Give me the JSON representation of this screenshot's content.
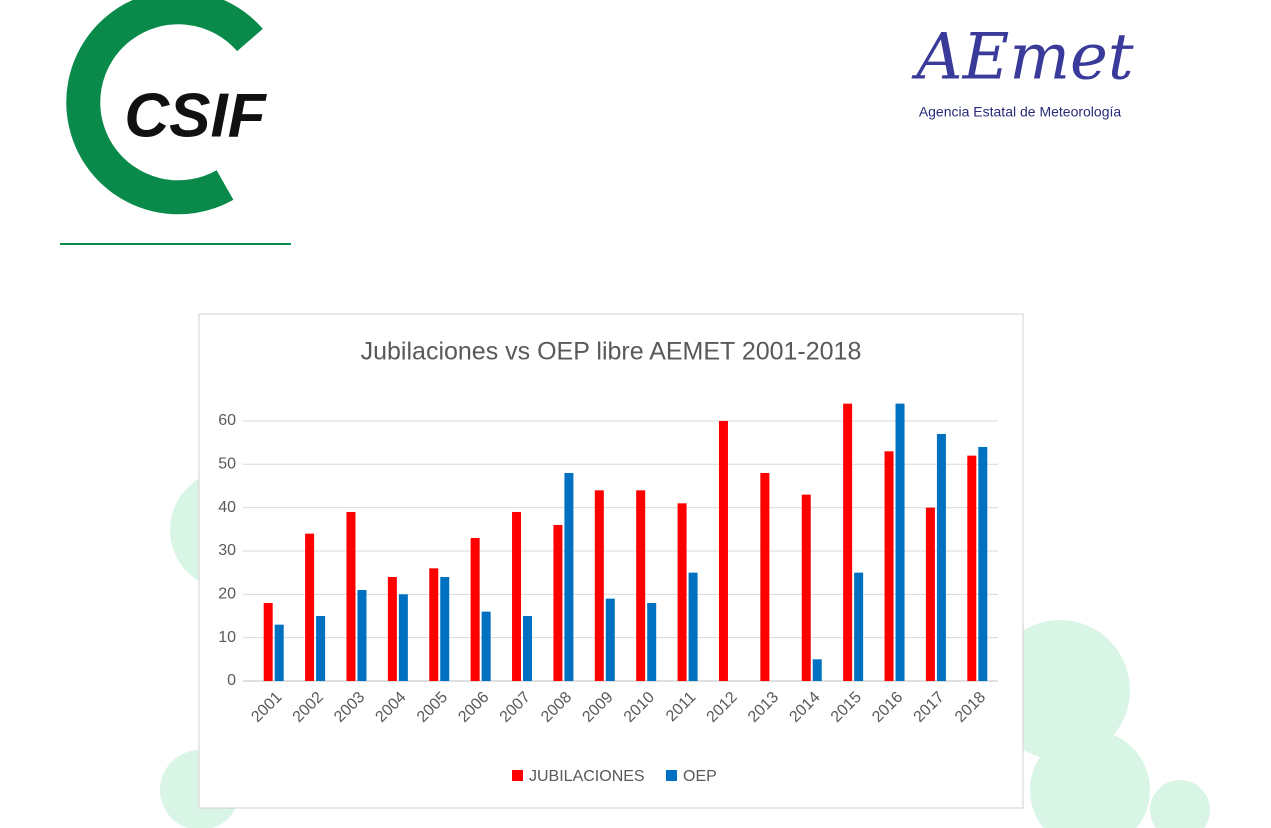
{
  "logos": {
    "left": "CSIF",
    "right": "AEmet",
    "right_caption": "Agencia Estatal de Meteorología"
  },
  "chart_data": {
    "type": "bar",
    "title": "Jubilaciones vs OEP libre AEMET 2001-2018",
    "categories": [
      "2001",
      "2002",
      "2003",
      "2004",
      "2005",
      "2006",
      "2007",
      "2008",
      "2009",
      "2010",
      "2011",
      "2012",
      "2013",
      "2014",
      "2015",
      "2016",
      "2017",
      "2018"
    ],
    "series": [
      {
        "name": "JUBILACIONES",
        "color": "#ff0000",
        "values": [
          18,
          34,
          39,
          24,
          26,
          33,
          39,
          36,
          44,
          44,
          41,
          60,
          48,
          43,
          64,
          53,
          40,
          52
        ]
      },
      {
        "name": "OEP",
        "color": "#0070c0",
        "values": [
          13,
          15,
          21,
          20,
          24,
          16,
          15,
          48,
          19,
          18,
          25,
          0,
          0,
          5,
          25,
          64,
          57,
          54
        ]
      }
    ],
    "ylim": [
      0,
      65
    ],
    "yticks": [
      0,
      10,
      20,
      30,
      40,
      50,
      60
    ],
    "grid": true,
    "legend": "bottom"
  }
}
